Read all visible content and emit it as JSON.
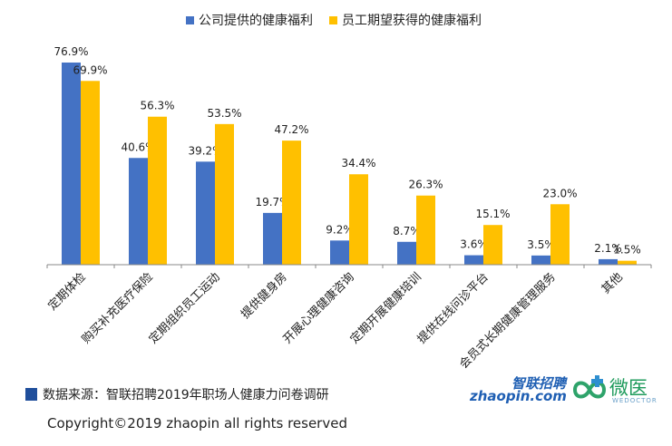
{
  "chart_data": {
    "type": "bar",
    "title": "",
    "xlabel": "",
    "ylabel": "",
    "ylim": [
      0,
      100
    ],
    "legend_position": "top",
    "grid": false,
    "categories": [
      "定期体检",
      "购买补充医疗保险",
      "定期组织员工运动",
      "提供健身房",
      "开展心理健康咨询",
      "定期开展健康培训",
      "提供在线问诊平台",
      "会员式长期健康管理服务",
      "其他"
    ],
    "series": [
      {
        "name": "公司提供的健康福利",
        "color": "#4472c4",
        "values": [
          76.9,
          40.6,
          39.2,
          19.7,
          9.2,
          8.7,
          3.6,
          3.5,
          2.1
        ],
        "labels": [
          "76.9%",
          "40.6%",
          "39.2%",
          "19.7%",
          "9.2%",
          "8.7%",
          "3.6%",
          "3.5%",
          "2.1%"
        ]
      },
      {
        "name": "员工期望获得的健康福利",
        "color": "#ffc000",
        "values": [
          69.9,
          56.3,
          53.5,
          47.2,
          34.4,
          26.3,
          15.1,
          23.0,
          1.5
        ],
        "labels": [
          "69.9%",
          "56.3%",
          "53.5%",
          "47.2%",
          "34.4%",
          "26.3%",
          "15.1%",
          "23.0%",
          "1.5%"
        ]
      }
    ]
  },
  "footer": {
    "source": "数据来源：智联招聘2019年职场人健康力问卷调研",
    "copyright": "Copyright©2019 zhaopin all rights reserved"
  },
  "logos": {
    "zhaopin_cn": "智联招聘",
    "zhaopin_en": "zhaopin.com",
    "weiyi_cn": "微医",
    "weiyi_en": "WEDOCTOR"
  }
}
